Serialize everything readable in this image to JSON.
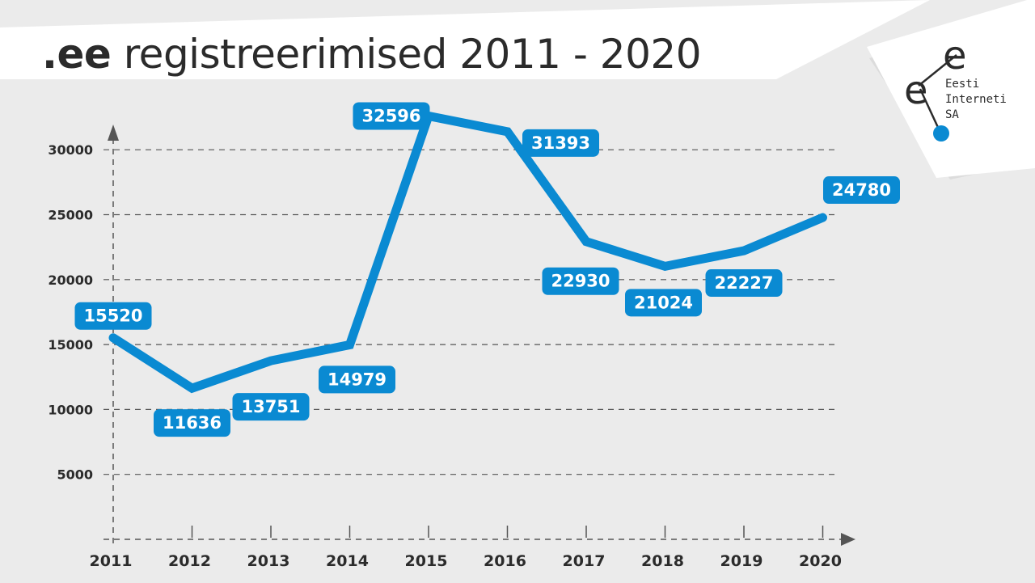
{
  "header": {
    "title_strong": ".ee",
    "title_rest": " registreerimised 2011 - 2020"
  },
  "logo": {
    "letters": [
      "e",
      "e"
    ],
    "lines": [
      "Eesti",
      "Interneti",
      "SA"
    ]
  },
  "colors": {
    "accent": "#0a8ad2",
    "text": "#2b2b2b",
    "background": "#ebebeb",
    "banner": "#ffffff",
    "grid": "#555555"
  },
  "chart_data": {
    "type": "line",
    "title": ".ee registreerimised 2011 - 2020",
    "xlabel": "",
    "ylabel": "",
    "categories": [
      "2011",
      "2012",
      "2013",
      "2014",
      "2015",
      "2016",
      "2017",
      "2018",
      "2019",
      "2020"
    ],
    "series": [
      {
        "values": [
          15520,
          11636,
          13751,
          14979,
          32596,
          31393,
          22930,
          21024,
          22227,
          24780
        ]
      }
    ],
    "yticks": [
      5000,
      10000,
      15000,
      20000,
      25000,
      30000
    ],
    "ylim": [
      0,
      33000
    ],
    "grid": "dashed horizontal",
    "data_labels": true
  }
}
